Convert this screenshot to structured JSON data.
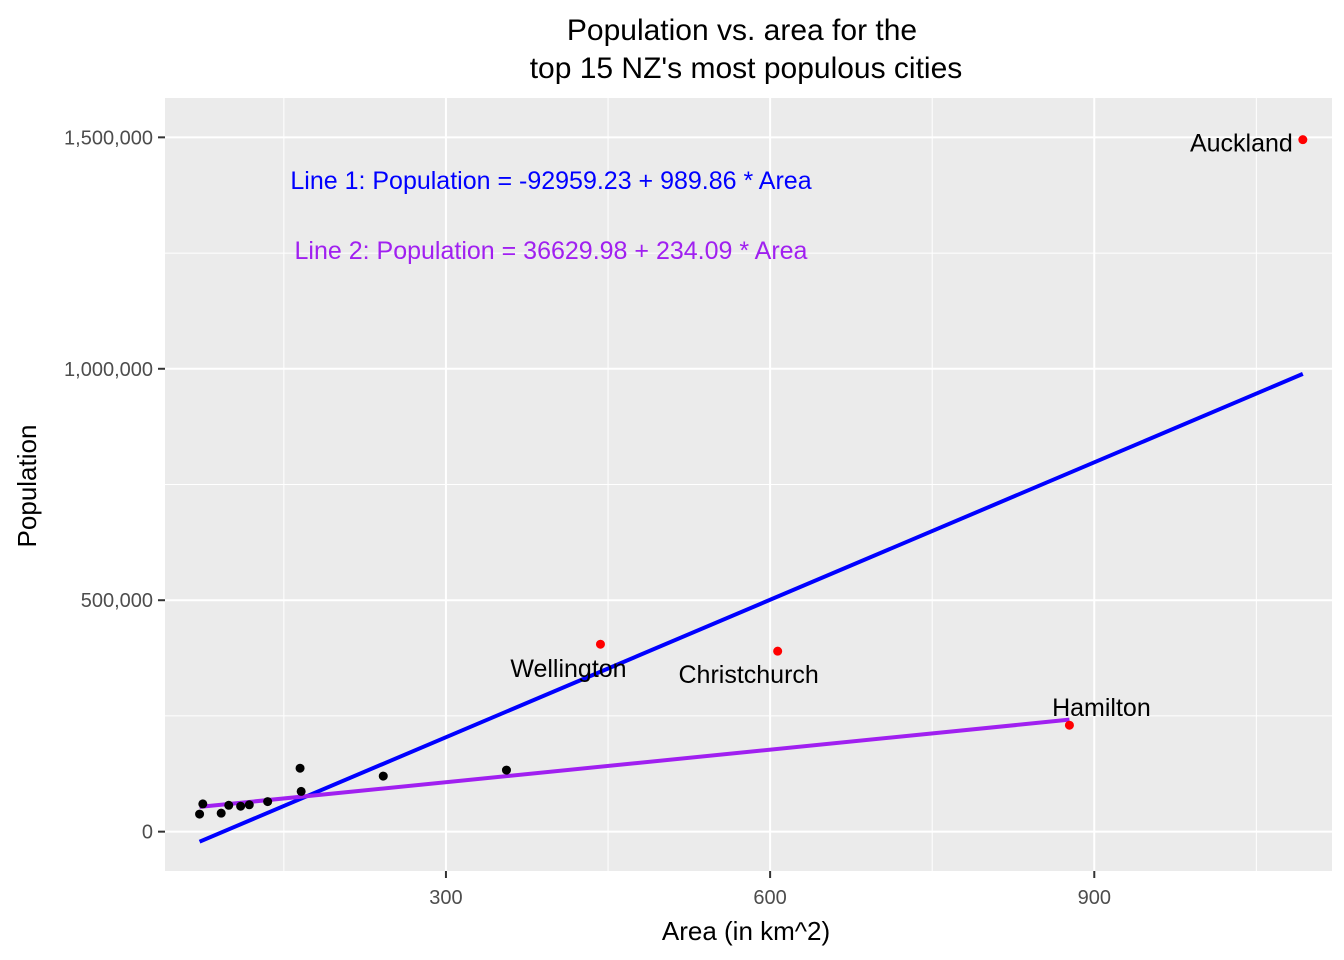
{
  "chart_data": {
    "type": "scatter",
    "title_line1": "Population vs. area for the",
    "title_line2": "top 15 NZ's most populous cities",
    "xlabel": "Area (in km^2)",
    "ylabel": "Population",
    "xlim": [
      40,
      1120
    ],
    "ylim": [
      -85000,
      1585000
    ],
    "x_ticks": [
      300,
      600,
      900
    ],
    "x_tick_labels": [
      "300",
      "600",
      "900"
    ],
    "y_ticks": [
      0,
      500000,
      1000000,
      1500000
    ],
    "y_tick_labels": [
      "0",
      "500,000",
      "1,000,000",
      "1,500,000"
    ],
    "grid": true,
    "points": [
      {
        "x": 1093,
        "y": 1495000,
        "color": "#ff0000",
        "label": "Auckland"
      },
      {
        "x": 443,
        "y": 405000,
        "color": "#ff0000",
        "label": "Wellington"
      },
      {
        "x": 607,
        "y": 390000,
        "color": "#ff0000",
        "label": "Christchurch"
      },
      {
        "x": 877,
        "y": 230000,
        "color": "#ff0000",
        "label": "Hamilton"
      },
      {
        "x": 72,
        "y": 38000,
        "color": "#000000",
        "label": ""
      },
      {
        "x": 75,
        "y": 60000,
        "color": "#000000",
        "label": ""
      },
      {
        "x": 92,
        "y": 40000,
        "color": "#000000",
        "label": ""
      },
      {
        "x": 99,
        "y": 57000,
        "color": "#000000",
        "label": ""
      },
      {
        "x": 110,
        "y": 55000,
        "color": "#000000",
        "label": ""
      },
      {
        "x": 118,
        "y": 58000,
        "color": "#000000",
        "label": ""
      },
      {
        "x": 135,
        "y": 65000,
        "color": "#000000",
        "label": ""
      },
      {
        "x": 165,
        "y": 137000,
        "color": "#000000",
        "label": ""
      },
      {
        "x": 166,
        "y": 87000,
        "color": "#000000",
        "label": ""
      },
      {
        "x": 242,
        "y": 120000,
        "color": "#000000",
        "label": ""
      },
      {
        "x": 356,
        "y": 133000,
        "color": "#000000",
        "label": ""
      }
    ],
    "lines": [
      {
        "name": "Line 1",
        "color": "#0000ff",
        "intercept": -92959.23,
        "slope": 989.86,
        "x_range": [
          72,
          1093
        ],
        "equation": "Line 1: Population = -92959.23 + 989.86 * Area"
      },
      {
        "name": "Line 2",
        "color": "#a020f0",
        "intercept": 36629.98,
        "slope": 234.09,
        "x_range": [
          72,
          877
        ],
        "equation": "Line 2: Population = 36629.98 + 234.09 * Area"
      }
    ],
    "colors": {
      "panel_background": "#ebebeb",
      "grid": "#ffffff",
      "highlight_point": "#ff0000",
      "other_point": "#000000"
    }
  }
}
